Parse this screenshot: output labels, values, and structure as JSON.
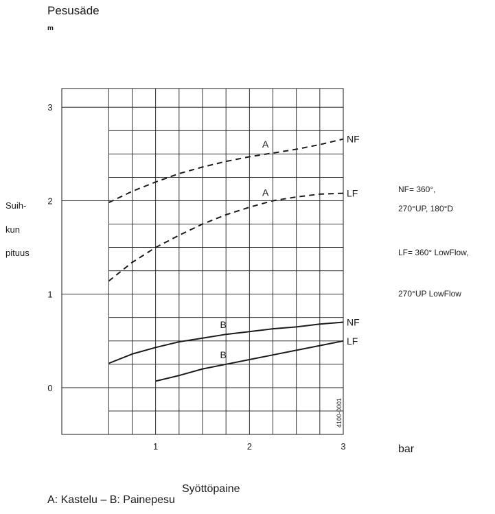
{
  "chart_data": {
    "type": "line",
    "title": "Pesusäde",
    "y_unit": "m",
    "ylabel": [
      "Suih-",
      "kun",
      "pituus"
    ],
    "xlabel": "Syöttöpaine",
    "x_unit": "bar",
    "xlim": [
      0,
      3
    ],
    "ylim": [
      -0.5,
      3.2
    ],
    "x_ticks": [
      "1",
      "2",
      "3"
    ],
    "y_ticks": [
      "0",
      "1",
      "2",
      "3"
    ],
    "grid": true,
    "code": "4100-0001",
    "caption": "A: Kastelu – B: Painepesu",
    "notes": [
      "NF= 360°,",
      "270°UP, 180°D",
      "LF= 360° LowFlow,",
      "270°UP LowFlow"
    ],
    "series": [
      {
        "name": "NF",
        "group": "A",
        "dash": true,
        "x": [
          0.5,
          0.75,
          1.0,
          1.25,
          1.5,
          1.75,
          2.0,
          2.25,
          2.5,
          2.75,
          3.0
        ],
        "y": [
          1.98,
          2.1,
          2.2,
          2.29,
          2.36,
          2.42,
          2.47,
          2.51,
          2.55,
          2.6,
          2.66
        ]
      },
      {
        "name": "LF",
        "group": "A",
        "dash": true,
        "x": [
          0.5,
          0.75,
          1.0,
          1.25,
          1.5,
          1.75,
          2.0,
          2.25,
          2.5,
          2.75,
          3.0
        ],
        "y": [
          1.14,
          1.34,
          1.5,
          1.63,
          1.75,
          1.85,
          1.93,
          2.0,
          2.04,
          2.07,
          2.08
        ]
      },
      {
        "name": "NF",
        "group": "B",
        "dash": false,
        "x": [
          0.5,
          0.75,
          1.0,
          1.25,
          1.5,
          1.75,
          2.0,
          2.25,
          2.5,
          2.75,
          3.0
        ],
        "y": [
          0.26,
          0.36,
          0.43,
          0.49,
          0.53,
          0.57,
          0.6,
          0.63,
          0.65,
          0.68,
          0.7
        ]
      },
      {
        "name": "LF",
        "group": "B",
        "dash": false,
        "x": [
          1.0,
          1.25,
          1.5,
          1.75,
          2.0,
          2.25,
          2.5,
          2.75,
          3.0
        ],
        "y": [
          0.07,
          0.13,
          0.2,
          0.25,
          0.3,
          0.35,
          0.4,
          0.45,
          0.5
        ]
      }
    ]
  }
}
